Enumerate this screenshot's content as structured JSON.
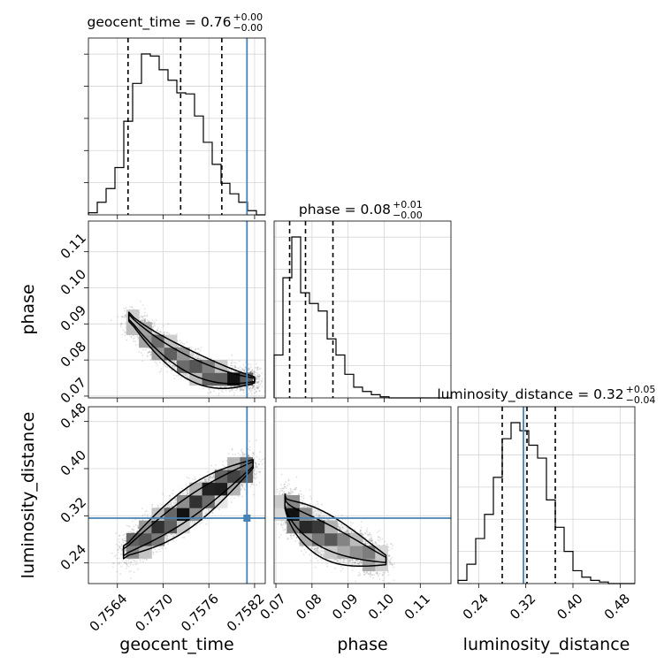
{
  "chart_data": {
    "type": "corner",
    "parameters": [
      "geocent_time",
      "phase",
      "luminosity_distance"
    ],
    "titles": [
      {
        "param": "geocent_time",
        "median": "0.76",
        "upper": "+0.00",
        "lower": "−0.00"
      },
      {
        "param": "phase",
        "median": "0.08",
        "upper": "+0.01",
        "lower": "−0.00"
      },
      {
        "param": "luminosity_distance",
        "median": "0.32",
        "upper": "+0.05",
        "lower": "−0.04"
      }
    ],
    "ranges": {
      "geocent_time": [
        0.75602,
        0.75834
      ],
      "phase": [
        0.0695,
        0.1185
      ],
      "luminosity_distance": [
        0.205,
        0.505
      ]
    },
    "ticks": {
      "geocent_time": [
        "0.7564",
        "0.7570",
        "0.7576",
        "0.7582"
      ],
      "phase": [
        "0.07",
        "0.08",
        "0.09",
        "0.10",
        "0.11"
      ],
      "luminosity_distance": [
        "0.24",
        "0.32",
        "0.40",
        "0.48"
      ]
    },
    "truths": {
      "geocent_time": 0.7581,
      "phase": null,
      "luminosity_distance": 0.316
    },
    "quantiles": {
      "geocent_time": [
        0.75654,
        0.75723,
        0.75777
      ],
      "phase": [
        0.0738,
        0.0782,
        0.0858
      ],
      "luminosity_distance": [
        0.28,
        0.322,
        0.37
      ]
    },
    "histograms": {
      "geocent_time": {
        "range": [
          0.75602,
          0.75834
        ],
        "counts": [
          2,
          12,
          25,
          45,
          89,
          125,
          153,
          151,
          138,
          128,
          116,
          115,
          94,
          69,
          48,
          30,
          20,
          12,
          4,
          0
        ]
      },
      "phase": {
        "range": [
          0.0695,
          0.1185
        ],
        "counts": [
          40,
          112,
          150,
          98,
          88,
          81,
          55,
          40,
          22,
          10,
          6,
          3,
          1,
          0,
          0,
          0,
          0,
          0,
          0,
          0
        ]
      },
      "luminosity_distance": {
        "range": [
          0.205,
          0.505
        ],
        "counts": [
          2,
          12,
          28,
          43,
          66,
          90,
          100,
          95,
          86,
          78,
          52,
          35,
          20,
          8,
          4,
          2,
          1,
          0,
          0,
          0
        ]
      }
    },
    "ylabels": [
      "phase",
      "luminosity_distance"
    ],
    "xlabels": [
      "geocent_time",
      "phase",
      "luminosity_distance"
    ],
    "grid": true,
    "truth_color": "#4682b4",
    "contour_color": "#000000"
  }
}
